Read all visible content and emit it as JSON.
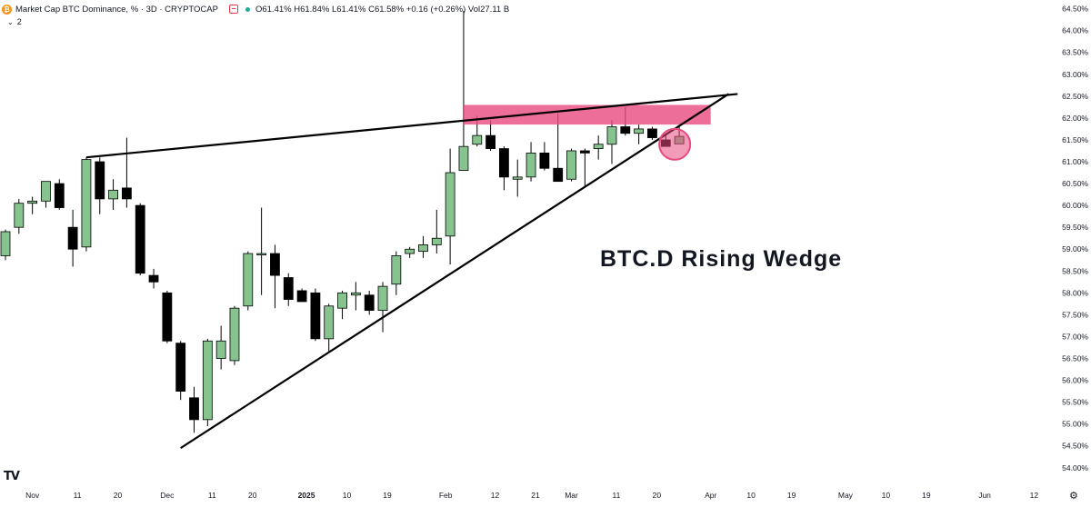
{
  "header": {
    "symbol_title": "Market Cap BTC Dominance, % · 3D · CRYPTOCAP",
    "ohlc_text": "O61.41% H61.84% L61.41% C61.58% +0.16 (+0.26%) Vol27.11 B",
    "indicator_count": "2",
    "coin_glyph": "₿"
  },
  "colors": {
    "up_candle": "#86c38e",
    "down_candle": "#000000",
    "wedge_line": "#000000",
    "resistance_zone": "#e84a7f",
    "highlight_circle": "#e84a7f"
  },
  "chart_data": {
    "type": "candlestick",
    "title": "",
    "annotation": "BTC.D Rising Wedge",
    "y_axis": {
      "unit": "%",
      "ticks": [
        "54.00%",
        "54.50%",
        "55.00%",
        "55.50%",
        "56.00%",
        "56.50%",
        "57.00%",
        "57.50%",
        "58.00%",
        "58.50%",
        "59.00%",
        "59.50%",
        "60.00%",
        "60.50%",
        "61.00%",
        "61.50%",
        "62.00%",
        "62.50%",
        "63.00%",
        "63.50%",
        "64.00%",
        "64.50%"
      ],
      "range": [
        53.85,
        64.7
      ]
    },
    "x_axis": {
      "ticks": [
        {
          "label": "Nov",
          "date": "2024-11-01"
        },
        {
          "label": "11",
          "date": "2024-11-11"
        },
        {
          "label": "20",
          "date": "2024-11-20"
        },
        {
          "label": "Dec",
          "date": "2024-12-01"
        },
        {
          "label": "11",
          "date": "2024-12-11"
        },
        {
          "label": "20",
          "date": "2024-12-20"
        },
        {
          "label": "2025",
          "date": "2025-01-01"
        },
        {
          "label": "10",
          "date": "2025-01-10"
        },
        {
          "label": "19",
          "date": "2025-01-19"
        },
        {
          "label": "Feb",
          "date": "2025-02-01"
        },
        {
          "label": "12",
          "date": "2025-02-12"
        },
        {
          "label": "21",
          "date": "2025-02-21"
        },
        {
          "label": "Mar",
          "date": "2025-03-01"
        },
        {
          "label": "11",
          "date": "2025-03-11"
        },
        {
          "label": "20",
          "date": "2025-03-20"
        },
        {
          "label": "Apr",
          "date": "2025-04-01"
        },
        {
          "label": "10",
          "date": "2025-04-10"
        },
        {
          "label": "19",
          "date": "2025-04-19"
        },
        {
          "label": "May",
          "date": "2025-05-01"
        },
        {
          "label": "10",
          "date": "2025-05-10"
        },
        {
          "label": "19",
          "date": "2025-05-19"
        },
        {
          "label": "Jun",
          "date": "2025-06-01"
        },
        {
          "label": "12",
          "date": "2025-06-12"
        }
      ],
      "range": [
        "2024-10-26",
        "2025-06-19"
      ]
    },
    "candles": [
      {
        "date": "2024-10-26",
        "open": 58.85,
        "high": 59.45,
        "low": 58.75,
        "close": 59.4
      },
      {
        "date": "2024-10-29",
        "open": 59.5,
        "high": 60.15,
        "low": 59.35,
        "close": 60.05
      },
      {
        "date": "2024-11-01",
        "open": 60.05,
        "high": 60.2,
        "low": 59.8,
        "close": 60.1
      },
      {
        "date": "2024-11-04",
        "open": 60.1,
        "high": 60.55,
        "low": 59.95,
        "close": 60.55
      },
      {
        "date": "2024-11-07",
        "open": 60.5,
        "high": 60.6,
        "low": 59.9,
        "close": 59.95
      },
      {
        "date": "2024-11-10",
        "open": 59.5,
        "high": 59.9,
        "low": 58.6,
        "close": 59.0
      },
      {
        "date": "2024-11-13",
        "open": 59.05,
        "high": 61.1,
        "low": 58.95,
        "close": 61.05
      },
      {
        "date": "2024-11-16",
        "open": 61.0,
        "high": 61.1,
        "low": 59.8,
        "close": 60.15
      },
      {
        "date": "2024-11-19",
        "open": 60.15,
        "high": 60.6,
        "low": 59.9,
        "close": 60.35
      },
      {
        "date": "2024-11-22",
        "open": 60.4,
        "high": 61.55,
        "low": 59.95,
        "close": 60.15
      },
      {
        "date": "2024-11-25",
        "open": 60.0,
        "high": 60.05,
        "low": 58.4,
        "close": 58.45
      },
      {
        "date": "2024-11-28",
        "open": 58.4,
        "high": 58.55,
        "low": 58.1,
        "close": 58.25
      },
      {
        "date": "2024-12-01",
        "open": 58.0,
        "high": 58.05,
        "low": 56.85,
        "close": 56.9
      },
      {
        "date": "2024-12-04",
        "open": 56.85,
        "high": 56.9,
        "low": 55.55,
        "close": 55.75
      },
      {
        "date": "2024-12-07",
        "open": 55.6,
        "high": 55.85,
        "low": 54.8,
        "close": 55.1
      },
      {
        "date": "2024-12-10",
        "open": 55.1,
        "high": 56.95,
        "low": 54.95,
        "close": 56.9
      },
      {
        "date": "2024-12-13",
        "open": 56.5,
        "high": 57.25,
        "low": 56.25,
        "close": 56.9
      },
      {
        "date": "2024-12-16",
        "open": 56.45,
        "high": 57.7,
        "low": 56.35,
        "close": 57.65
      },
      {
        "date": "2024-12-19",
        "open": 57.7,
        "high": 58.95,
        "low": 57.6,
        "close": 58.9
      },
      {
        "date": "2024-12-22",
        "open": 58.9,
        "high": 59.95,
        "low": 57.95,
        "close": 58.9
      },
      {
        "date": "2024-12-25",
        "open": 58.9,
        "high": 59.1,
        "low": 57.65,
        "close": 58.4
      },
      {
        "date": "2024-12-28",
        "open": 58.35,
        "high": 58.45,
        "low": 57.7,
        "close": 57.85
      },
      {
        "date": "2024-12-31",
        "open": 58.05,
        "high": 58.1,
        "low": 57.8,
        "close": 57.8
      },
      {
        "date": "2025-01-03",
        "open": 58.0,
        "high": 58.1,
        "low": 56.9,
        "close": 56.95
      },
      {
        "date": "2025-01-06",
        "open": 56.95,
        "high": 57.75,
        "low": 56.65,
        "close": 57.7
      },
      {
        "date": "2025-01-09",
        "open": 57.65,
        "high": 58.05,
        "low": 57.4,
        "close": 58.0
      },
      {
        "date": "2025-01-12",
        "open": 57.95,
        "high": 58.25,
        "low": 57.6,
        "close": 58.0
      },
      {
        "date": "2025-01-15",
        "open": 57.95,
        "high": 58.05,
        "low": 57.5,
        "close": 57.6
      },
      {
        "date": "2025-01-18",
        "open": 57.6,
        "high": 58.25,
        "low": 57.1,
        "close": 58.15
      },
      {
        "date": "2025-01-21",
        "open": 58.2,
        "high": 58.95,
        "low": 57.95,
        "close": 58.85
      },
      {
        "date": "2025-01-24",
        "open": 58.9,
        "high": 59.05,
        "low": 58.8,
        "close": 59.0
      },
      {
        "date": "2025-01-27",
        "open": 58.95,
        "high": 59.3,
        "low": 58.8,
        "close": 59.1
      },
      {
        "date": "2025-01-30",
        "open": 59.1,
        "high": 59.9,
        "low": 58.9,
        "close": 59.25
      },
      {
        "date": "2025-02-02",
        "open": 59.3,
        "high": 61.3,
        "low": 58.65,
        "close": 60.75
      },
      {
        "date": "2025-02-05",
        "open": 60.8,
        "high": 64.45,
        "low": 60.8,
        "close": 61.35
      },
      {
        "date": "2025-02-08",
        "open": 61.4,
        "high": 62.05,
        "low": 61.35,
        "close": 61.6
      },
      {
        "date": "2025-02-11",
        "open": 61.6,
        "high": 61.95,
        "low": 61.25,
        "close": 61.3
      },
      {
        "date": "2025-02-14",
        "open": 61.3,
        "high": 61.35,
        "low": 60.35,
        "close": 60.65
      },
      {
        "date": "2025-02-17",
        "open": 60.6,
        "high": 61.05,
        "low": 60.2,
        "close": 60.65
      },
      {
        "date": "2025-02-20",
        "open": 60.65,
        "high": 61.45,
        "low": 60.55,
        "close": 61.2
      },
      {
        "date": "2025-02-23",
        "open": 61.2,
        "high": 61.45,
        "low": 60.8,
        "close": 60.85
      },
      {
        "date": "2025-02-26",
        "open": 60.85,
        "high": 62.1,
        "low": 60.6,
        "close": 60.55
      },
      {
        "date": "2025-03-01",
        "open": 60.6,
        "high": 61.3,
        "low": 60.55,
        "close": 61.25
      },
      {
        "date": "2025-03-04",
        "open": 61.25,
        "high": 61.3,
        "low": 60.4,
        "close": 61.2
      },
      {
        "date": "2025-03-07",
        "open": 61.3,
        "high": 61.6,
        "low": 61.05,
        "close": 61.4
      },
      {
        "date": "2025-03-10",
        "open": 61.4,
        "high": 61.95,
        "low": 60.95,
        "close": 61.8
      },
      {
        "date": "2025-03-13",
        "open": 61.8,
        "high": 62.25,
        "low": 61.6,
        "close": 61.65
      },
      {
        "date": "2025-03-16",
        "open": 61.65,
        "high": 61.85,
        "low": 61.4,
        "close": 61.75
      },
      {
        "date": "2025-03-19",
        "open": 61.75,
        "high": 61.8,
        "low": 61.5,
        "close": 61.55
      },
      {
        "date": "2025-03-22",
        "open": 61.5,
        "high": 61.6,
        "low": 61.35,
        "close": 61.35
      },
      {
        "date": "2025-03-25",
        "open": 61.41,
        "high": 61.84,
        "low": 61.41,
        "close": 61.58
      }
    ],
    "drawings": {
      "wedge_upper": {
        "from": {
          "date": "2024-11-13",
          "value": 61.1
        },
        "to": {
          "date": "2025-04-07",
          "value": 62.55
        }
      },
      "wedge_lower": {
        "from": {
          "date": "2024-12-04",
          "value": 54.45
        },
        "to": {
          "date": "2025-04-05",
          "value": 62.55
        }
      },
      "resistance_zone": {
        "from_date": "2025-02-05",
        "to_date": "2025-04-01",
        "low": 61.85,
        "high": 62.3
      },
      "highlight_circle": {
        "date": "2025-03-24",
        "value": 61.4
      }
    },
    "grid": false
  }
}
